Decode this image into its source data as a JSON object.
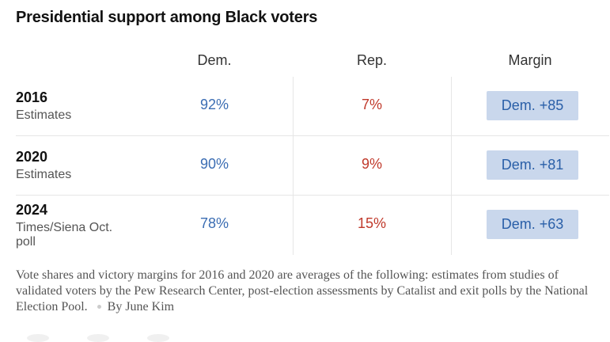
{
  "title": "Presidential support among Black voters",
  "columns": {
    "dem": "Dem.",
    "rep": "Rep.",
    "margin": "Margin"
  },
  "rows": [
    {
      "year": "2016",
      "source": "Estimates",
      "dem": "92%",
      "rep": "7%",
      "margin": "Dem. +85"
    },
    {
      "year": "2020",
      "source": "Estimates",
      "dem": "90%",
      "rep": "9%",
      "margin": "Dem. +81"
    },
    {
      "year": "2024",
      "source": "Times/Siena Oct. poll",
      "dem": "78%",
      "rep": "15%",
      "margin": "Dem. +63"
    }
  ],
  "note": "Vote shares and victory margins for 2016 and 2020 are averages of the following: estimates from studies of validated voters by the Pew Research Center, post-election assessments by Catalist and exit polls by the National Election Pool.",
  "byline": "By June Kim",
  "colors": {
    "dem_text": "#3b6db3",
    "rep_text": "#c0392b",
    "margin_badge_bg": "#c9d7ec",
    "margin_badge_text": "#2a5fa8"
  }
}
